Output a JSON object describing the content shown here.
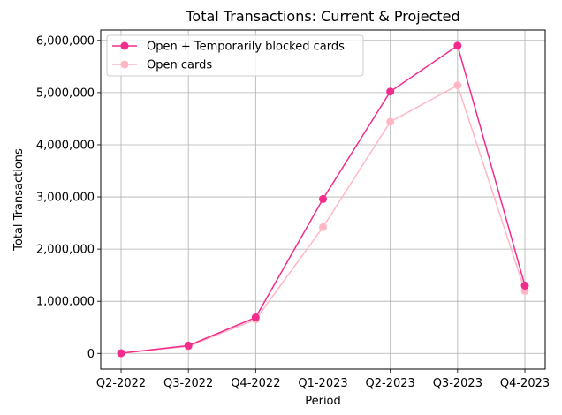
{
  "chart_data": {
    "type": "line",
    "title": "Total Transactions: Current & Projected",
    "xlabel": "Period",
    "ylabel": "Total Transactions",
    "categories": [
      "Q2-2022",
      "Q3-2022",
      "Q4-2022",
      "Q1-2023",
      "Q2-2023",
      "Q3-2023",
      "Q4-2023"
    ],
    "ylim": [
      -300000,
      6200000
    ],
    "yticks": [
      0,
      1000000,
      2000000,
      3000000,
      4000000,
      5000000,
      6000000
    ],
    "ytick_labels": [
      "0",
      "1,000,000",
      "2,000,000",
      "3,000,000",
      "4,000,000",
      "5,000,000",
      "6,000,000"
    ],
    "grid": true,
    "legend_position": "top-left",
    "series": [
      {
        "name": "Open + Temporarily blocked cards",
        "color": "#f22b8d",
        "values": [
          5000,
          150000,
          690000,
          2960000,
          5020000,
          5900000,
          1300000
        ]
      },
      {
        "name": "Open cards",
        "color": "#ffb7c5",
        "values": [
          3000,
          135000,
          650000,
          2420000,
          4440000,
          5140000,
          1200000
        ]
      }
    ]
  }
}
